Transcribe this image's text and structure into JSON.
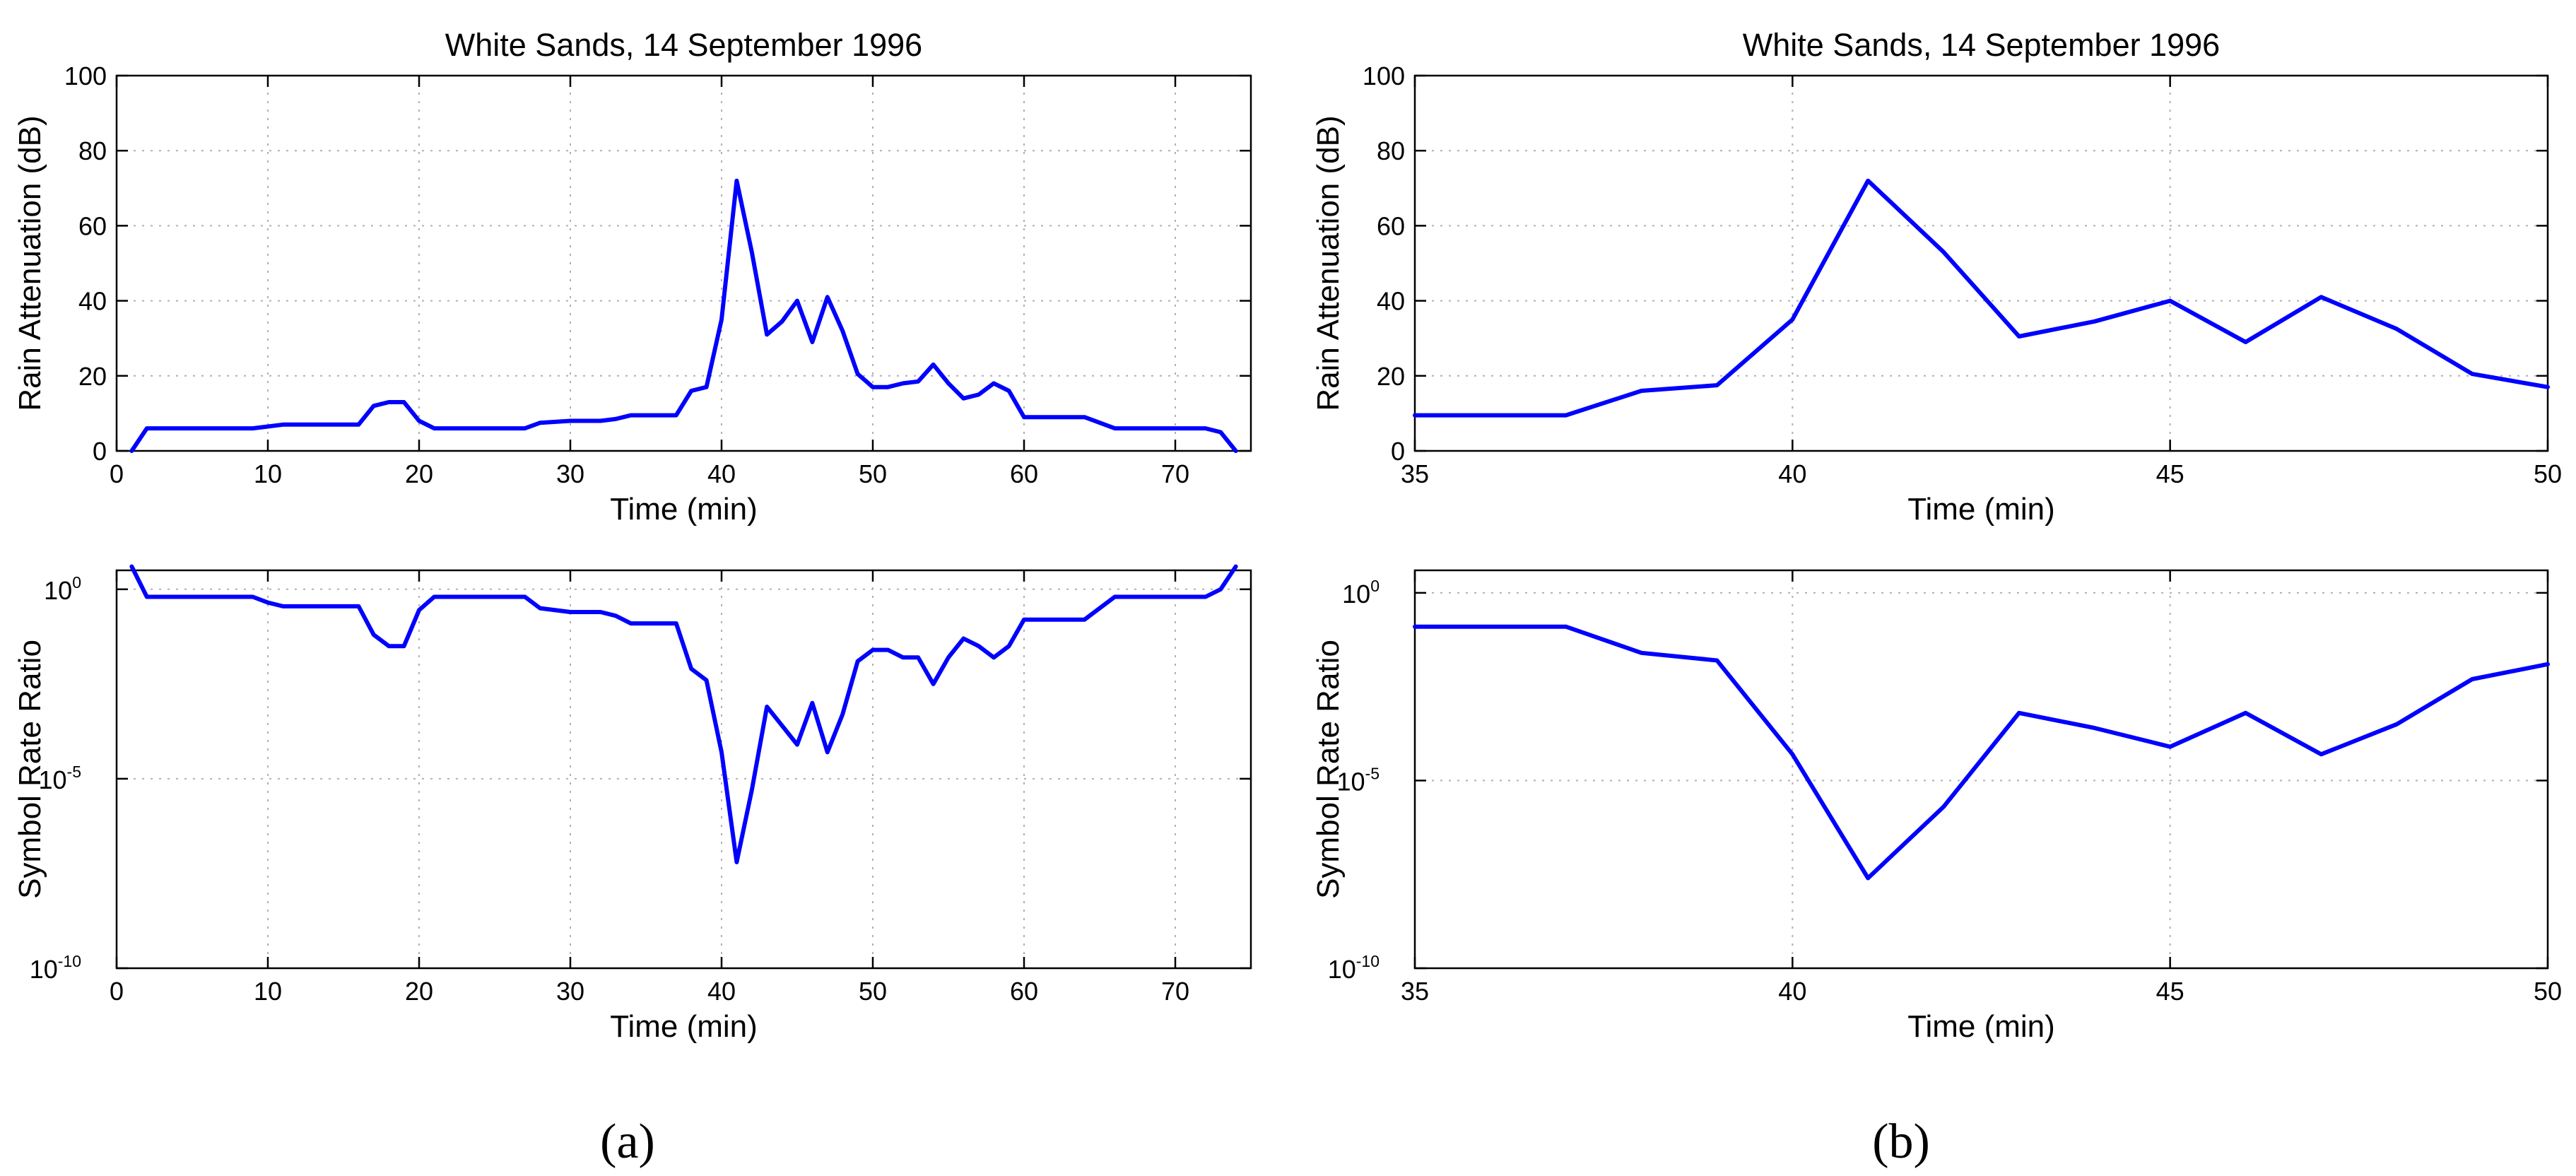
{
  "panel_labels": [
    "(a)",
    "(b)"
  ],
  "chart_data": [
    {
      "type": "line",
      "panel": "a",
      "title": "White Sands, 14 September 1996",
      "xlabel": "Time (min)",
      "ylabel": "Rain Attenuation (dB)",
      "xlim": [
        0,
        75
      ],
      "ylim": [
        0,
        100
      ],
      "xticks": [
        0,
        10,
        20,
        30,
        40,
        50,
        60,
        70
      ],
      "yticks": [
        0,
        20,
        40,
        60,
        80,
        100
      ],
      "grid": true,
      "series": [
        {
          "name": "Rain Attenuation",
          "color": "#0000ff",
          "x": [
            1,
            2,
            5,
            9,
            10,
            11,
            14,
            16,
            17,
            18,
            19,
            20,
            21,
            24,
            27,
            28,
            30,
            32,
            33,
            34,
            37,
            38,
            39,
            40,
            41,
            42,
            43,
            44,
            45,
            46,
            47,
            48,
            49,
            50,
            51,
            52,
            53,
            54,
            55,
            56,
            57,
            58,
            59,
            60,
            61,
            62,
            64,
            66,
            70,
            72,
            73,
            74
          ],
          "y": [
            0,
            6,
            6,
            6,
            6.5,
            7,
            7,
            7,
            12,
            13,
            13,
            8,
            6,
            6,
            6,
            7.5,
            8,
            8,
            8.5,
            9.5,
            9.5,
            16,
            17,
            35,
            72,
            53,
            31,
            34.5,
            40,
            29,
            41,
            32,
            20.5,
            17,
            17,
            18,
            18.5,
            23,
            18,
            14,
            15,
            18,
            16,
            9,
            9,
            9,
            9,
            6,
            6,
            6,
            5,
            0
          ]
        }
      ]
    },
    {
      "type": "line",
      "panel": "a",
      "title": "",
      "xlabel": "Time (min)",
      "ylabel": "Symbol Rate Ratio",
      "yscale": "log",
      "xlim": [
        0,
        75
      ],
      "ylim_exponent": [
        -10,
        0.5
      ],
      "xticks": [
        0,
        10,
        20,
        30,
        40,
        50,
        60,
        70
      ],
      "ytick_exponents": [
        -10,
        -5,
        0
      ],
      "ytick_base": "10",
      "grid": true,
      "series": [
        {
          "name": "Symbol Rate Ratio (log10)",
          "color": "#0000ff",
          "x": [
            1,
            2,
            5,
            9,
            10,
            11,
            14,
            16,
            17,
            18,
            19,
            20,
            21,
            24,
            27,
            28,
            30,
            32,
            33,
            34,
            37,
            38,
            39,
            40,
            41,
            42,
            43,
            44,
            45,
            46,
            47,
            48,
            49,
            50,
            51,
            52,
            53,
            54,
            55,
            56,
            57,
            58,
            59,
            60,
            61,
            62,
            64,
            66,
            70,
            72,
            73,
            74
          ],
          "log10_y": [
            0.6,
            -0.2,
            -0.2,
            -0.2,
            -0.35,
            -0.45,
            -0.45,
            -0.45,
            -1.2,
            -1.5,
            -1.5,
            -0.55,
            -0.2,
            -0.2,
            -0.2,
            -0.5,
            -0.6,
            -0.6,
            -0.7,
            -0.9,
            -0.9,
            -2.1,
            -2.4,
            -4.3,
            -7.2,
            -5.3,
            -3.1,
            -3.6,
            -4.1,
            -3.0,
            -4.3,
            -3.3,
            -1.9,
            -1.6,
            -1.6,
            -1.8,
            -1.8,
            -2.5,
            -1.8,
            -1.3,
            -1.5,
            -1.8,
            -1.5,
            -0.8,
            -0.8,
            -0.8,
            -0.8,
            -0.2,
            -0.2,
            -0.2,
            0.0,
            0.6
          ]
        }
      ]
    },
    {
      "type": "line",
      "panel": "b",
      "title": "White Sands, 14 September 1996",
      "xlabel": "Time (min)",
      "ylabel": "Rain Attenuation (dB)",
      "xlim": [
        35,
        50
      ],
      "ylim": [
        0,
        100
      ],
      "xticks": [
        35,
        40,
        45,
        50
      ],
      "yticks": [
        0,
        20,
        40,
        60,
        80,
        100
      ],
      "grid": true,
      "series": [
        {
          "name": "Rain Attenuation",
          "color": "#0000ff",
          "x": [
            35,
            36,
            37,
            38,
            39,
            40,
            41,
            42,
            43,
            44,
            45,
            46,
            47,
            48,
            49,
            50
          ],
          "y": [
            9.5,
            9.5,
            9.5,
            16,
            17.5,
            35,
            72,
            53,
            30.5,
            34.5,
            40,
            29,
            41,
            32.5,
            20.5,
            17
          ]
        }
      ]
    },
    {
      "type": "line",
      "panel": "b",
      "title": "",
      "xlabel": "Time (min)",
      "ylabel": "Symbol Rate Ratio",
      "yscale": "log",
      "xlim": [
        35,
        50
      ],
      "ylim_exponent": [
        -10,
        0.6
      ],
      "xticks": [
        35,
        40,
        45,
        50
      ],
      "ytick_exponents": [
        -10,
        -5,
        0
      ],
      "ytick_base": "10",
      "grid": true,
      "series": [
        {
          "name": "Symbol Rate Ratio (log10)",
          "color": "#0000ff",
          "x": [
            35,
            36,
            37,
            38,
            39,
            40,
            41,
            42,
            43,
            44,
            45,
            46,
            47,
            48,
            49,
            50
          ],
          "log10_y": [
            -0.9,
            -0.9,
            -0.9,
            -1.6,
            -1.8,
            -4.3,
            -7.6,
            -5.7,
            -3.2,
            -3.6,
            -4.1,
            -3.2,
            -4.3,
            -3.5,
            -2.3,
            -1.9
          ]
        }
      ]
    }
  ]
}
